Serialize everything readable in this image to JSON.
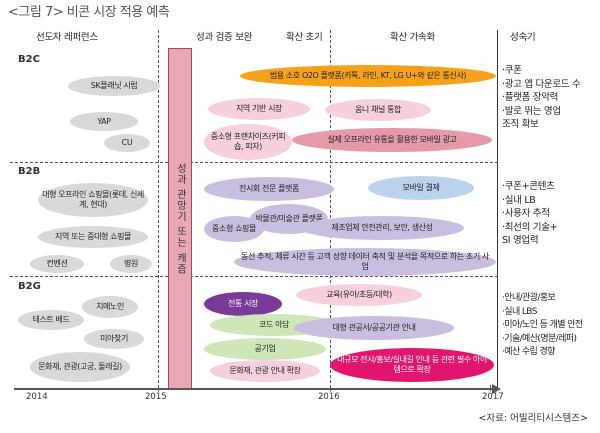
{
  "title": "<그림 7> 비콘 시장 적용 예측",
  "source": "<자료: 어빌리티시스템즈>",
  "phases": [
    "선도자 레퍼런스",
    "성과 검증 보완",
    "확산 초기",
    "확산 가속화",
    "성숙기"
  ],
  "segments": [
    "B2C",
    "B2B",
    "B2G"
  ],
  "years": [
    "2014",
    "2015",
    "2016",
    "2017"
  ],
  "vertical_bar": "성과 관망기 또는 캐즘",
  "b2c": {
    "skplanet": "SK플래닛 시럽",
    "yap": "YAP",
    "cu": "CU",
    "o2o": "범용 소호 O2O 플랫폼(카톡, 라인, KT, LG U+와 같은 통신사)",
    "local": "지역 기반 시장",
    "omni": "옴니 채널 통합",
    "franchise": "중소형 프랜차이즈(커피숍, 피자)",
    "offline": "실제 오프라인 유통을 활용한 모바일 광고"
  },
  "b2b": {
    "dept": "대형 오프라인 쇼핑몰(롯데, 신세계, 현대)",
    "regional": "지역 또는 중대형 쇼핑몰",
    "convention": "컨벤션",
    "hospital": "병원",
    "exhibit": "전시회 전문 플랫폼",
    "payment": "모바일 결제",
    "museum": "박물관/미술관 플랫폼",
    "small_mall": "중소형 쇼핑몰",
    "factory": "제조업체 안전관리, 보안, 생산성",
    "tracking": "동선 추적, 체류 시간 등 고객 성향 데이터 축적 및 분석을 목적으로 하는 초기 사업"
  },
  "b2g": {
    "test": "테스트 베드",
    "dementia": "치매노인",
    "lost_child": "미아찾기",
    "culture_tour": "문화재, 관광(고궁, 둘레길)",
    "traditional": "전통 시장",
    "education": "교육(유아/초등/대학)",
    "code": "코드 아담",
    "public_info": "대형 관공서/공공기관 안내",
    "airport": "공기업",
    "culture_guide": "문화재, 관광 안내 확장",
    "large_venue": "대규모 전시/홍보/실내길 안내 등 관련 필수 아이템으로 확장"
  },
  "notes": {
    "b2c": [
      "·쿠폰",
      "·광고 앱 다운로드 수",
      "·플랫폼 장악력",
      "·발로 뛰는 영업",
      "  조직 확보"
    ],
    "b2b": [
      "·쿠폰+콘텐츠",
      "·실내 LB",
      "·사용자 추적",
      "·최선의 기술+",
      "  SI 영업력"
    ],
    "b2g": [
      "·안내/관광/홍보",
      "·실내 LBS",
      "·미아/노인 등 개별 안전",
      "·기술/예산(명분/레퍼)",
      "·예산 수립 경향"
    ]
  }
}
